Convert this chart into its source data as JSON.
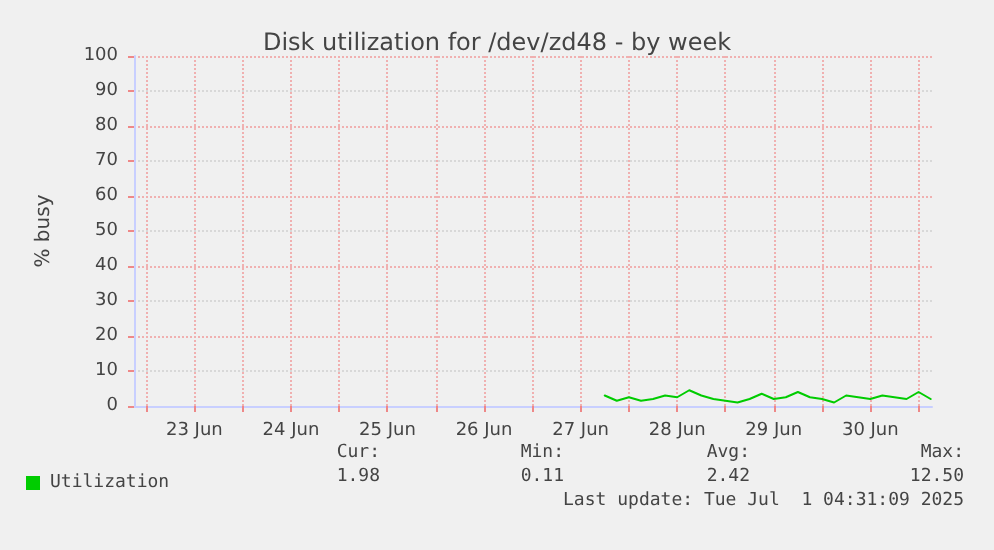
{
  "chart_data": {
    "type": "line",
    "title": "Disk utilization for /dev/zd48 - by week",
    "ylabel": "% busy",
    "xlim": [
      "2025-06-22T21:00",
      "2025-07-01T03:20"
    ],
    "xticks": [
      {
        "value": "2025-06-23T00:00",
        "label": null
      },
      {
        "value": "2025-06-23T12:00",
        "label": "23 Jun"
      },
      {
        "value": "2025-06-24T00:00",
        "label": null
      },
      {
        "value": "2025-06-24T12:00",
        "label": "24 Jun"
      },
      {
        "value": "2025-06-25T00:00",
        "label": null
      },
      {
        "value": "2025-06-25T12:00",
        "label": "25 Jun"
      },
      {
        "value": "2025-06-26T00:00",
        "label": null
      },
      {
        "value": "2025-06-26T12:00",
        "label": "26 Jun"
      },
      {
        "value": "2025-06-27T00:00",
        "label": null
      },
      {
        "value": "2025-06-27T12:00",
        "label": "27 Jun"
      },
      {
        "value": "2025-06-28T00:00",
        "label": null
      },
      {
        "value": "2025-06-28T12:00",
        "label": "28 Jun"
      },
      {
        "value": "2025-06-29T00:00",
        "label": null
      },
      {
        "value": "2025-06-29T12:00",
        "label": "29 Jun"
      },
      {
        "value": "2025-06-30T00:00",
        "label": null
      },
      {
        "value": "2025-06-30T12:00",
        "label": "30 Jun"
      },
      {
        "value": "2025-07-01T00:00",
        "label": null
      }
    ],
    "ylim": [
      0,
      100
    ],
    "yticks": [
      0,
      10,
      20,
      30,
      40,
      50,
      60,
      70,
      80,
      90,
      100
    ],
    "grid": true,
    "legend": "bottom left",
    "marker": "none",
    "line_style": "solid",
    "x": [
      "2025-06-27T18:00",
      "2025-06-27T21:00",
      "2025-06-28T00:00",
      "2025-06-28T03:00",
      "2025-06-28T06:00",
      "2025-06-28T09:00",
      "2025-06-28T12:00",
      "2025-06-28T15:00",
      "2025-06-28T18:00",
      "2025-06-28T21:00",
      "2025-06-29T00:00",
      "2025-06-29T03:00",
      "2025-06-29T06:00",
      "2025-06-29T09:00",
      "2025-06-29T12:00",
      "2025-06-29T15:00",
      "2025-06-29T18:00",
      "2025-06-29T21:00",
      "2025-06-30T00:00",
      "2025-06-30T03:00",
      "2025-06-30T06:00",
      "2025-06-30T09:00",
      "2025-06-30T12:00",
      "2025-06-30T15:00",
      "2025-06-30T18:00",
      "2025-06-30T21:00",
      "2025-07-01T00:00",
      "2025-07-01T03:00"
    ],
    "series": [
      {
        "name": "Utilization",
        "color": "#00cc00",
        "values": [
          3,
          1.5,
          2.5,
          1.5,
          2,
          3,
          2.5,
          4.5,
          3,
          2,
          1.5,
          1,
          2,
          3.5,
          2,
          2.5,
          4,
          2.5,
          2,
          1,
          3,
          2.5,
          2,
          3,
          2.5,
          2,
          4,
          2
        ]
      }
    ],
    "annotations": [
      "Cur:",
      "Min:",
      "Avg:",
      "Max:",
      "1.98",
      "0.11",
      "2.42",
      "12.50",
      "Last update: Tue Jul  1 04:31:09 2025"
    ]
  }
}
